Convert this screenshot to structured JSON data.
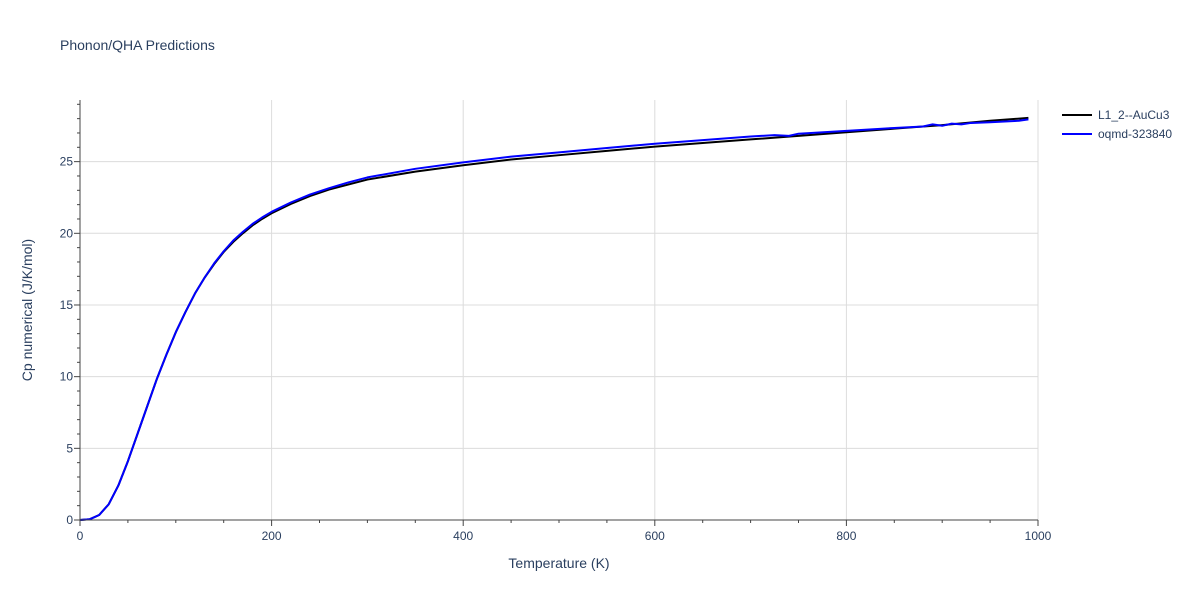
{
  "chart_data": {
    "type": "line",
    "title": "Phonon/QHA Predictions",
    "xlabel": "Temperature (K)",
    "ylabel": "Cp numerical (J/K/mol)",
    "xlim": [
      0,
      1000
    ],
    "ylim": [
      0,
      29.3
    ],
    "xticks": [
      0,
      200,
      400,
      600,
      800,
      1000
    ],
    "yticks": [
      0,
      5,
      10,
      15,
      20,
      25
    ],
    "grid": true,
    "legend_position": "top-right",
    "series": [
      {
        "name": "L1_2--AuCu3",
        "color": "#000000",
        "x": [
          0,
          10,
          20,
          30,
          40,
          50,
          60,
          70,
          80,
          90,
          100,
          110,
          120,
          130,
          140,
          150,
          160,
          170,
          180,
          190,
          200,
          220,
          240,
          260,
          280,
          300,
          350,
          400,
          450,
          500,
          550,
          600,
          650,
          700,
          750,
          800,
          850,
          900,
          950,
          990
        ],
        "y": [
          0,
          0.05,
          0.35,
          1.1,
          2.4,
          4.1,
          6.0,
          7.9,
          9.8,
          11.5,
          13.1,
          14.5,
          15.8,
          16.9,
          17.85,
          18.7,
          19.4,
          20.0,
          20.55,
          21.0,
          21.4,
          22.05,
          22.6,
          23.05,
          23.4,
          23.75,
          24.3,
          24.75,
          25.15,
          25.45,
          25.75,
          26.05,
          26.3,
          26.55,
          26.8,
          27.05,
          27.3,
          27.55,
          27.85,
          28.05
        ]
      },
      {
        "name": "oqmd-323840",
        "color": "#0000ff",
        "x": [
          0,
          10,
          20,
          30,
          40,
          50,
          60,
          70,
          80,
          90,
          100,
          110,
          120,
          130,
          140,
          150,
          160,
          170,
          180,
          190,
          200,
          220,
          240,
          260,
          280,
          300,
          350,
          400,
          450,
          500,
          550,
          600,
          650,
          700,
          725,
          740,
          750,
          800,
          850,
          880,
          890,
          900,
          910,
          920,
          930,
          950,
          980,
          990
        ],
        "y": [
          0,
          0.05,
          0.35,
          1.1,
          2.4,
          4.1,
          6.0,
          7.9,
          9.8,
          11.5,
          13.1,
          14.5,
          15.8,
          16.9,
          17.9,
          18.75,
          19.5,
          20.1,
          20.65,
          21.1,
          21.5,
          22.15,
          22.7,
          23.15,
          23.55,
          23.9,
          24.5,
          24.95,
          25.35,
          25.65,
          25.95,
          26.25,
          26.5,
          26.75,
          26.85,
          26.8,
          26.95,
          27.15,
          27.35,
          27.45,
          27.6,
          27.5,
          27.65,
          27.6,
          27.7,
          27.75,
          27.85,
          27.95
        ]
      }
    ]
  }
}
